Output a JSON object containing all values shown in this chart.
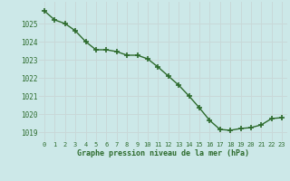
{
  "x": [
    0,
    1,
    2,
    3,
    4,
    5,
    6,
    7,
    8,
    9,
    10,
    11,
    12,
    13,
    14,
    15,
    16,
    17,
    18,
    19,
    20,
    21,
    22,
    23
  ],
  "y": [
    1025.7,
    1025.2,
    1025.0,
    1024.6,
    1024.0,
    1023.55,
    1023.55,
    1023.45,
    1023.25,
    1023.25,
    1023.05,
    1022.6,
    1022.1,
    1021.6,
    1021.0,
    1020.35,
    1019.65,
    1019.15,
    1019.1,
    1019.2,
    1019.25,
    1019.4,
    1019.75,
    1019.8
  ],
  "line_color": "#2d6b2d",
  "marker": "+",
  "marker_size": 4,
  "bg_color": "#cce8e8",
  "grid_color": "#c8d8d8",
  "xlabel": "Graphe pression niveau de la mer (hPa)",
  "xlabel_color": "#2d6b2d",
  "tick_color": "#2d6b2d",
  "ylim": [
    1018.5,
    1026.2
  ],
  "yticks": [
    1019,
    1020,
    1021,
    1022,
    1023,
    1024,
    1025
  ],
  "xticks": [
    0,
    1,
    2,
    3,
    4,
    5,
    6,
    7,
    8,
    9,
    10,
    11,
    12,
    13,
    14,
    15,
    16,
    17,
    18,
    19,
    20,
    21,
    22,
    23
  ],
  "line_width": 1.0,
  "marker_color": "#2d6b2d",
  "marker_edge_width": 1.2
}
